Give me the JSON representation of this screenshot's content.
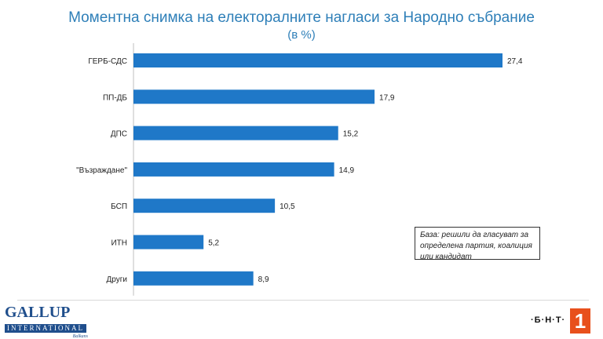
{
  "header": {
    "title": "Моментна снимка на електоралните нагласи за Народно събрание",
    "subtitle": "(в %)"
  },
  "note": "База: решили да гласуват за определена партия, коалиция или кандидат",
  "logos": {
    "gallup_main": "GALLUP",
    "gallup_international": "INTERNATIONAL",
    "gallup_region": "Balkans",
    "bnt_text": "·Б·Н·Т·",
    "bnt_number": "1"
  },
  "colors": {
    "bar": "#1f78c8",
    "title": "#2e7fb8",
    "bnt_accent": "#e8501c"
  },
  "chart_data": {
    "type": "bar",
    "orientation": "horizontal",
    "categories": [
      "ГЕРБ-СДС",
      "ПП-ДБ",
      "ДПС",
      "\"Възраждане\"",
      "БСП",
      "ИТН",
      "Други"
    ],
    "values": [
      27.4,
      17.9,
      15.2,
      14.9,
      10.5,
      5.2,
      8.9
    ],
    "value_labels": [
      "27,4",
      "17,9",
      "15,2",
      "14,9",
      "10,5",
      "5,2",
      "8,9"
    ],
    "xlim": [
      0,
      27.4
    ],
    "grid": false,
    "legend": false
  }
}
